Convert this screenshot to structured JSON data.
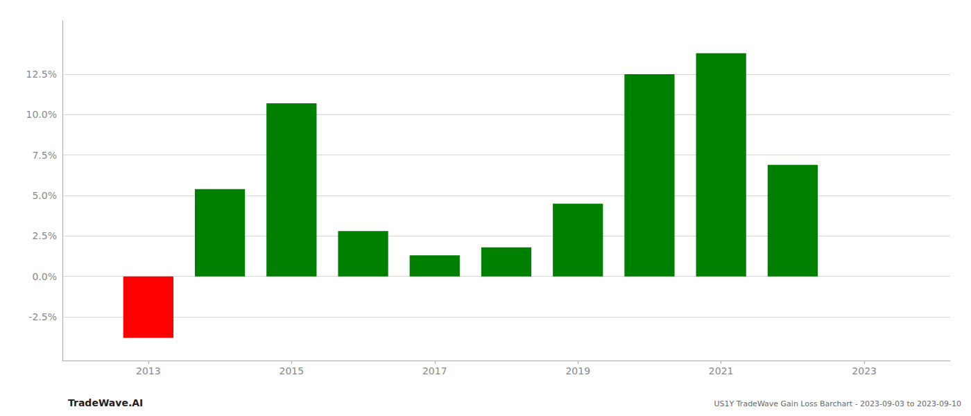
{
  "chart_data": {
    "type": "bar",
    "x": [
      2013,
      2014,
      2015,
      2016,
      2017,
      2018,
      2019,
      2020,
      2021,
      2022
    ],
    "values": [
      -0.038,
      0.054,
      0.107,
      0.028,
      0.013,
      0.018,
      0.045,
      0.125,
      0.138,
      0.069
    ],
    "colors": [
      "#ff0000",
      "#008000",
      "#008000",
      "#008000",
      "#008000",
      "#008000",
      "#008000",
      "#008000",
      "#008000",
      "#008000"
    ],
    "xlim": [
      2011.8,
      2024.2
    ],
    "xticks": [
      2013,
      2015,
      2017,
      2019,
      2021,
      2023
    ],
    "ylim": [
      -0.052,
      0.158
    ],
    "yticks": [
      {
        "value": -0.025,
        "label": "-2.5%"
      },
      {
        "value": 0.0,
        "label": "0.0%"
      },
      {
        "value": 0.025,
        "label": "2.5%"
      },
      {
        "value": 0.05,
        "label": "5.0%"
      },
      {
        "value": 0.075,
        "label": "7.5%"
      },
      {
        "value": 0.1,
        "label": "10.0%"
      },
      {
        "value": 0.125,
        "label": "12.5%"
      }
    ],
    "grid": true,
    "annotations": [
      "TradeWave.AI",
      "US1Y TradeWave Gain Loss Barchart - 2023-09-03 to 2023-09-10"
    ]
  }
}
